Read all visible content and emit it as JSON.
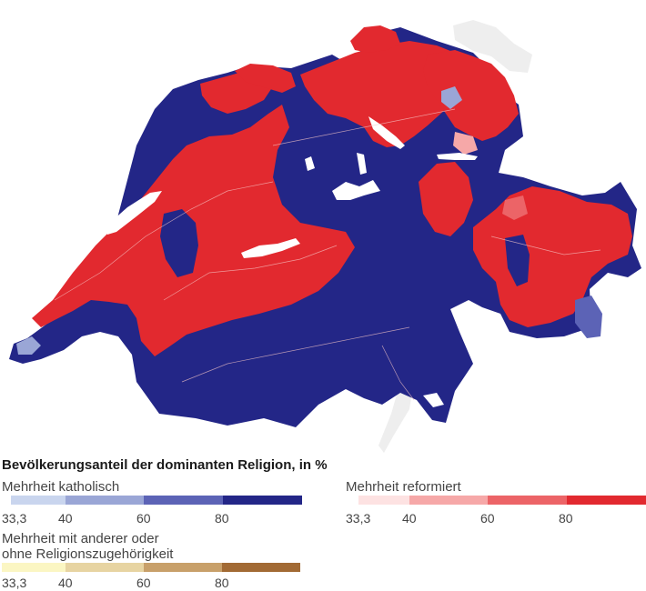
{
  "legend": {
    "title": "Bevölkerungsanteil der dominanten Religion, in %",
    "groups": [
      {
        "label": "Mehrheit katholisch",
        "colors": [
          "#c9d5ee",
          "#9aa6d6",
          "#5c63b6",
          "#232687"
        ],
        "ticks": [
          "33,3",
          "40",
          "60",
          "80"
        ]
      },
      {
        "label": "Mehrheit reformiert",
        "colors": [
          "#fde2e2",
          "#f6a8a8",
          "#ec6467",
          "#e2292f"
        ],
        "ticks": [
          "33,3",
          "40",
          "60",
          "80"
        ]
      },
      {
        "label_line1": "Mehrheit mit anderer oder",
        "label_line2": "ohne Religionszugehörigkeit",
        "colors": [
          "#fbf6c3",
          "#e7d4a2",
          "#c8a06a",
          "#a26a34"
        ],
        "ticks": [
          "33,3",
          "40",
          "60",
          "80"
        ]
      }
    ]
  },
  "map": {
    "catholic_color": "#232687",
    "reformed_color": "#e2292f",
    "lake_color": "#ffffff",
    "neighbor_lake_color": "#eeeeee",
    "border_line_color": "#f6c7c7"
  }
}
